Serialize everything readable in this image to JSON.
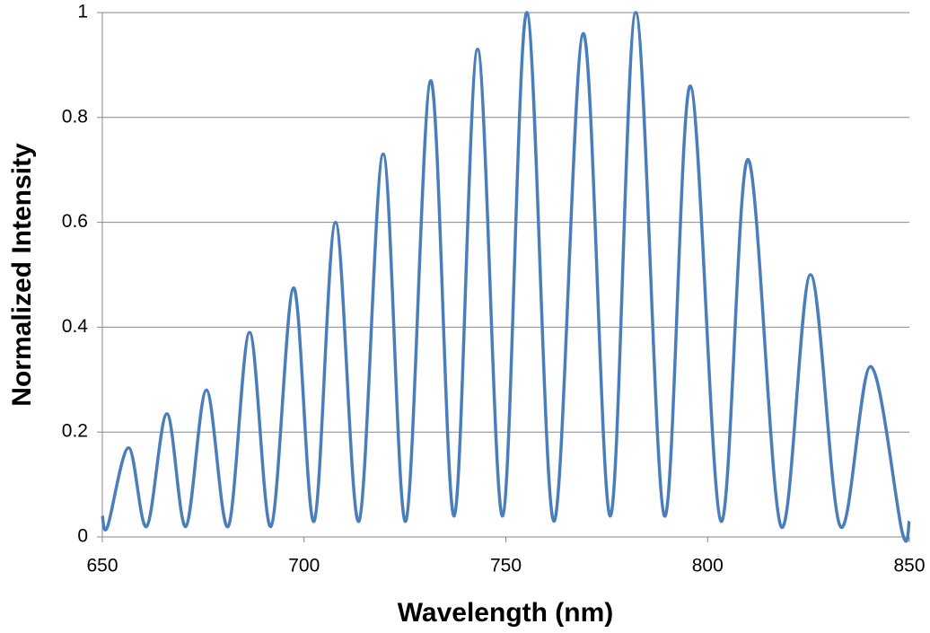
{
  "chart_data": {
    "type": "line",
    "x_label": "Wavelength (nm)",
    "y_label": "Normalized Intensity",
    "x": [
      650,
      651.3,
      656.5,
      661,
      666,
      670.7,
      675.8,
      681.2,
      686.5,
      691.8,
      697.4,
      702.5,
      707.8,
      713.6,
      719.6,
      725.2,
      731.4,
      737.2,
      743,
      749.2,
      755.2,
      761.9,
      769.2,
      775.9,
      782.2,
      789.3,
      795.7,
      803.3,
      810,
      818.2,
      825.5,
      832.9,
      840.4,
      848.2,
      850
    ],
    "values": [
      0.04,
      0.02,
      0.17,
      0.02,
      0.235,
      0.02,
      0.28,
      0.02,
      0.39,
      0.02,
      0.475,
      0.03,
      0.6,
      0.03,
      0.73,
      0.03,
      0.87,
      0.04,
      0.93,
      0.04,
      1.0,
      0.03,
      0.96,
      0.04,
      1.0,
      0.04,
      0.86,
      0.03,
      0.72,
      0.02,
      0.5,
      0.02,
      0.325,
      0.01,
      0.03
    ],
    "color": "#4a7ebb",
    "xlim": [
      650,
      850
    ],
    "xticks": [
      650,
      700,
      750,
      800,
      850
    ],
    "ylim": [
      0,
      1
    ],
    "yticks": [
      0,
      0.2,
      0.4,
      0.6,
      0.8,
      1
    ],
    "grid": true
  }
}
